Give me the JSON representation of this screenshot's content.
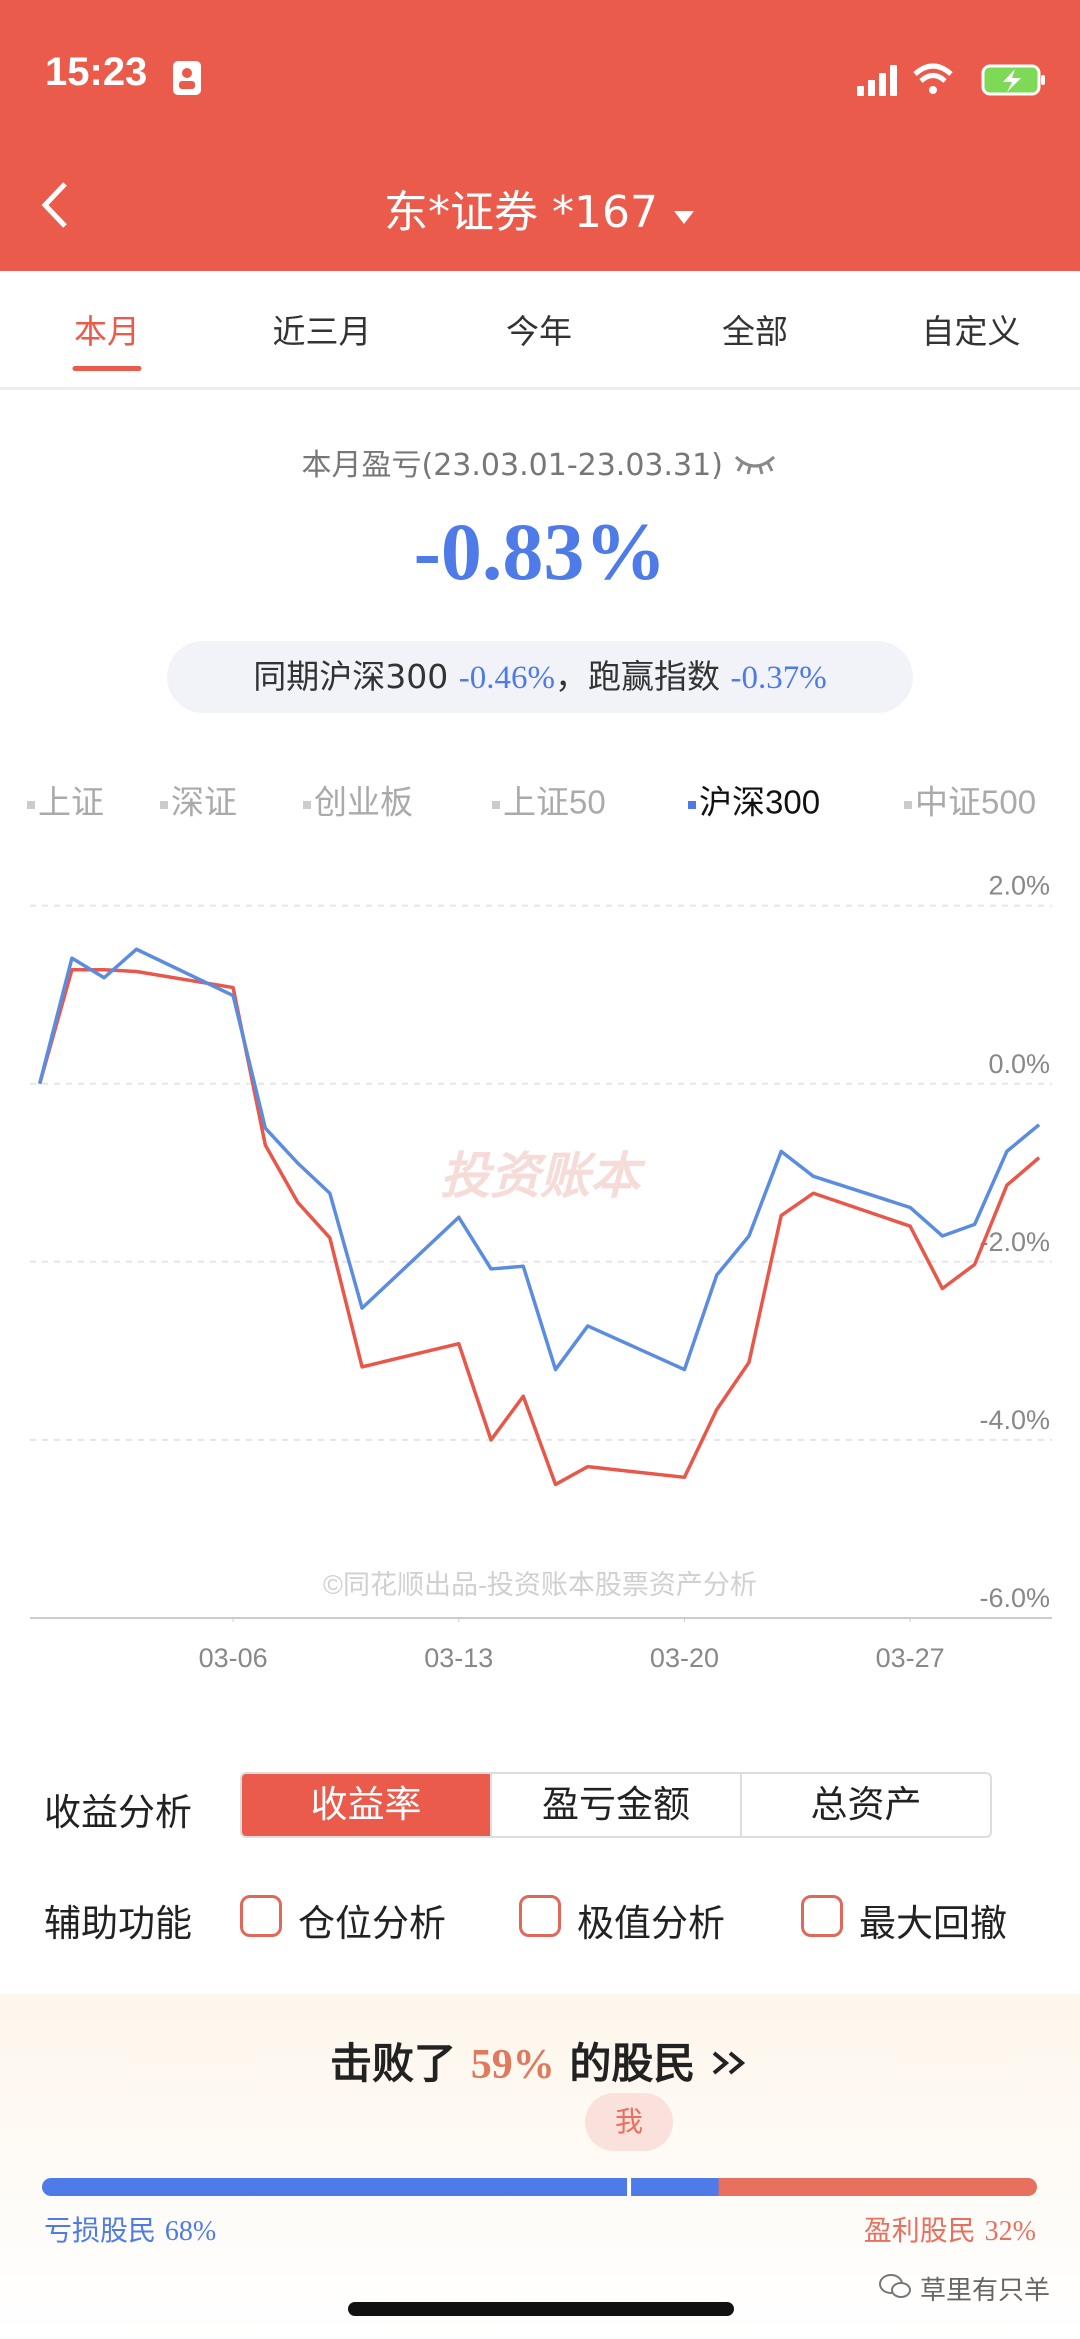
{
  "status_bar": {
    "time": "15:23"
  },
  "header": {
    "title": "东*证券 *167"
  },
  "tabs": {
    "items": [
      "本月",
      "近三月",
      "今年",
      "全部",
      "自定义"
    ],
    "active": 0
  },
  "summary": {
    "label": "本月盈亏(23.03.01-23.03.31)",
    "return": "-0.83%",
    "compare_prefix": "同期沪深300",
    "index_return": "-0.46%",
    "excess_prefix": "，跑赢指数",
    "excess_return": "-0.37%"
  },
  "chart_data": {
    "type": "line",
    "legend": [
      {
        "name": "上证",
        "color": "#cccccc"
      },
      {
        "name": "深证",
        "color": "#cccccc"
      },
      {
        "name": "创业板",
        "color": "#cccccc"
      },
      {
        "name": "上证50",
        "color": "#cccccc"
      },
      {
        "name": "沪深300",
        "color": "#4f7be8"
      },
      {
        "name": "中证500",
        "color": "#cccccc"
      }
    ],
    "active_legend": 4,
    "watermark": "投资账本",
    "credit": "©同花顺出品-投资账本股票资产分析",
    "x": [
      0,
      1,
      2,
      3,
      6,
      7,
      8,
      9,
      10,
      13,
      14,
      15,
      16,
      17,
      20,
      21,
      22,
      23,
      24,
      27,
      28,
      29,
      30,
      31
    ],
    "xlim": [
      -0.3,
      31.4
    ],
    "xticks": [
      {
        "value": 6,
        "label": "03-06"
      },
      {
        "value": 13,
        "label": "03-13"
      },
      {
        "value": 20,
        "label": "03-20"
      },
      {
        "value": 27,
        "label": "03-27"
      }
    ],
    "ylim": [
      -6,
      2.4
    ],
    "yticks": [
      {
        "value": 2,
        "label": "2.0%"
      },
      {
        "value": 0,
        "label": "0.0%"
      },
      {
        "value": -2,
        "label": "-2.0%"
      },
      {
        "value": -4,
        "label": "-4.0%"
      },
      {
        "value": -6,
        "label": "-6.0%"
      }
    ],
    "grid": true,
    "series": [
      {
        "color": "#e8574a",
        "values": [
          0,
          1.28,
          1.28,
          1.26,
          1.08,
          -0.69,
          -1.33,
          -1.73,
          -3.18,
          -2.92,
          -4.0,
          -3.51,
          -4.5,
          -4.3,
          -4.42,
          -3.66,
          -3.13,
          -1.48,
          -1.23,
          -1.6,
          -2.3,
          -2.03,
          -1.14,
          -0.83
        ]
      },
      {
        "color": "#5b8ce0",
        "values": [
          0,
          1.41,
          1.19,
          1.51,
          0.99,
          -0.5,
          -0.89,
          -1.23,
          -2.52,
          -1.5,
          -2.08,
          -2.05,
          -3.21,
          -2.72,
          -3.21,
          -2.15,
          -1.71,
          -0.76,
          -1.04,
          -1.39,
          -1.71,
          -1.58,
          -0.76,
          -0.46
        ]
      }
    ]
  },
  "analysis": {
    "label": "收益分析",
    "options": [
      "收益率",
      "盈亏金额",
      "总资产"
    ],
    "active": 0
  },
  "auxiliary": {
    "label": "辅助功能",
    "options": [
      "仓位分析",
      "极值分析",
      "最大回撤"
    ]
  },
  "ranking": {
    "prefix": "击败了",
    "value": 59,
    "value_label": "59%",
    "suffix": "的股民",
    "marker": "我",
    "loss": {
      "label": "亏损股民",
      "value": 68,
      "value_label": "68%",
      "color": "#4f7be8"
    },
    "profit": {
      "label": "盈利股民",
      "value": 32,
      "value_label": "32%",
      "color": "#e8705f"
    }
  },
  "footer": {
    "watermark": "草里有只羊"
  }
}
